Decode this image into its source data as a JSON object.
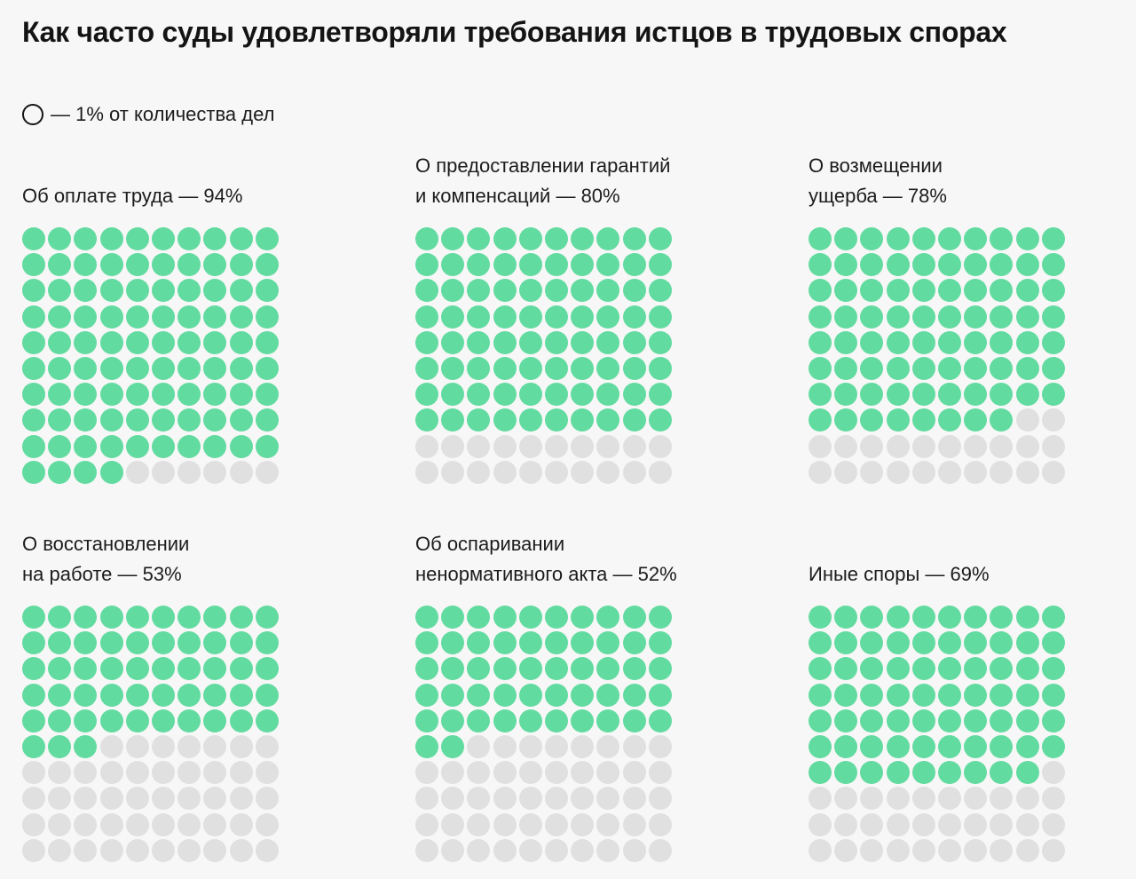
{
  "title": "Как часто суды удовлетворяли требования истцов в трудовых спорах",
  "legend": {
    "text": "— 1% от количества дел"
  },
  "colors": {
    "filled": "#62dba0",
    "empty": "#e0e0e0",
    "background": "#f7f7f7"
  },
  "chart_data": {
    "type": "waffle",
    "unit": "1% от количества дел",
    "grid": {
      "rows": 10,
      "cols": 10
    },
    "panels": [
      {
        "label_lines": [
          "Об оплате труда — 94%"
        ],
        "value": 94
      },
      {
        "label_lines": [
          "О предоставлении гарантий",
          "и компенсаций — 80%"
        ],
        "value": 80
      },
      {
        "label_lines": [
          "О возмещении",
          "ущерба — 78%"
        ],
        "value": 78
      },
      {
        "label_lines": [
          "О восстановлении",
          "на работе — 53%"
        ],
        "value": 53
      },
      {
        "label_lines": [
          "Об оспаривании",
          "ненормативного акта — 52%"
        ],
        "value": 52
      },
      {
        "label_lines": [
          "Иные споры — 69%"
        ],
        "value": 69
      }
    ]
  }
}
